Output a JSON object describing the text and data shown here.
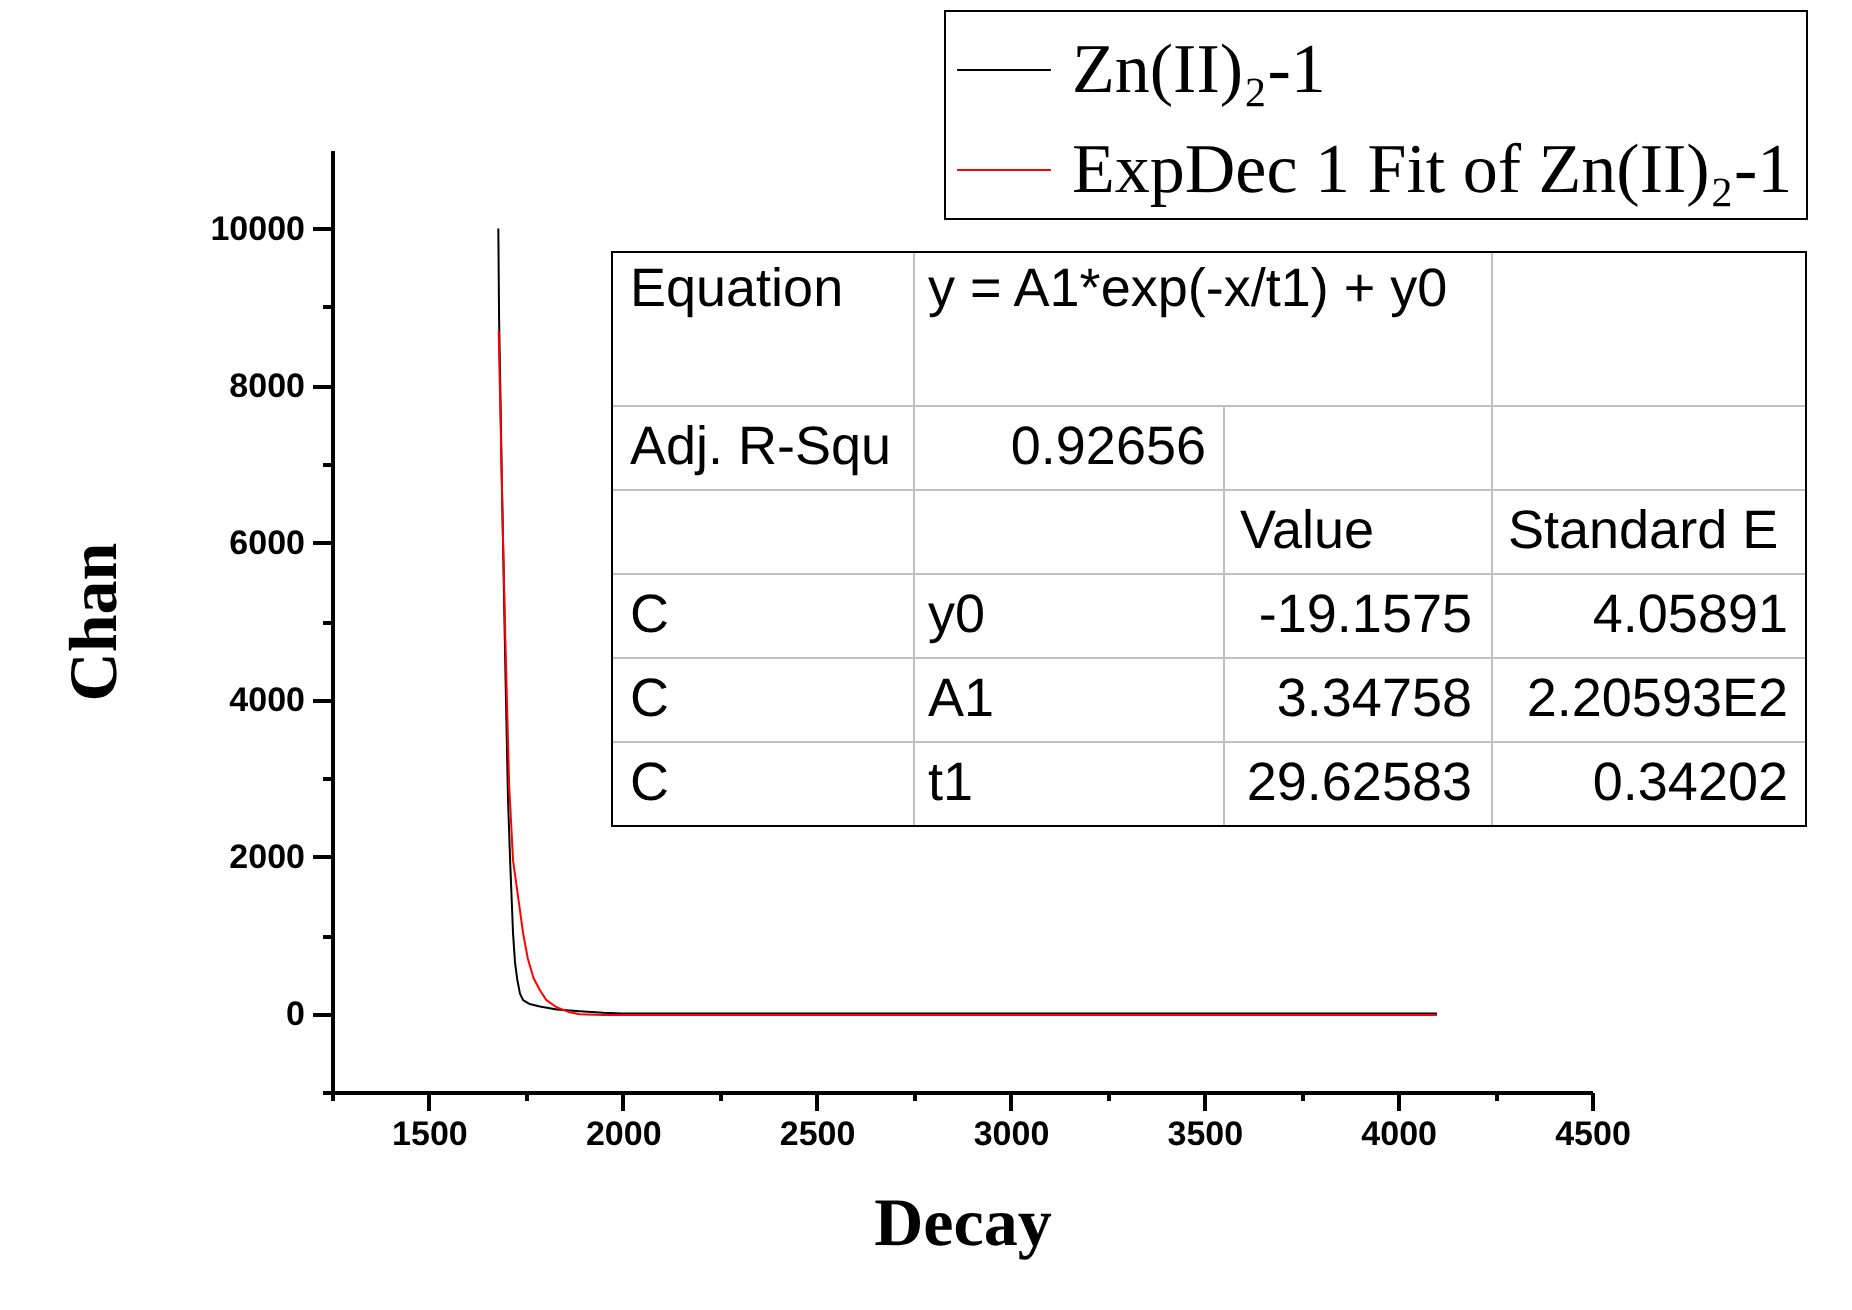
{
  "chart_data": {
    "type": "line",
    "xlabel": "Decay",
    "ylabel": "Chan",
    "xlim": [
      1250,
      4500
    ],
    "ylim": [
      -1000,
      11000
    ],
    "xticks": [
      {
        "value": 1250,
        "label": null
      },
      1500,
      {
        "value": 1750,
        "label": null
      },
      2000,
      {
        "value": 2250,
        "label": null
      },
      2500,
      {
        "value": 2750,
        "label": null
      },
      3000,
      {
        "value": 3250,
        "label": null
      },
      3500,
      {
        "value": 3750,
        "label": null
      },
      4000,
      {
        "value": 4250,
        "label": null
      },
      4500
    ],
    "yticks": [
      {
        "value": -1000,
        "label": null
      },
      0,
      {
        "value": 1000,
        "label": null
      },
      2000,
      {
        "value": 3000,
        "label": null
      },
      4000,
      {
        "value": 5000,
        "label": null
      },
      6000,
      {
        "value": 7000,
        "label": null
      },
      8000,
      {
        "value": 9000,
        "label": null
      },
      10000
    ],
    "grid": false,
    "legend": "top right",
    "line_style": "solid",
    "series": [
      {
        "name": "Zn(II)₂-1",
        "color": "#000000",
        "x": [
          1679,
          1681,
          1684,
          1688,
          1692,
          1697,
          1704,
          1710,
          1717,
          1722,
          1728,
          1735,
          1743,
          1760,
          1786,
          1830,
          1889,
          1950,
          2000,
          4100
        ],
        "values": [
          10000,
          8840,
          8000,
          6800,
          5780,
          4430,
          2720,
          1880,
          1020,
          650,
          430,
          250,
          170,
          120,
          90,
          50,
          30,
          10,
          0,
          0
        ]
      },
      {
        "name": "ExpDec 1 Fit of Zn(II)₂-1",
        "color": "#ff0000",
        "x": [
          1680,
          1685,
          1690,
          1697,
          1707,
          1717,
          1731,
          1743,
          1755,
          1770,
          1786,
          1803,
          1829,
          1860,
          1889,
          1950,
          4100
        ],
        "values": [
          8690,
          7500,
          6300,
          4800,
          2900,
          1950,
          1450,
          1020,
          700,
          450,
          300,
          170,
          80,
          20,
          -10,
          -20,
          -20
        ]
      }
    ],
    "annotations": [
      "Equation",
      "y = A1*exp(-x/t1) + y0",
      "Adj. R-Squ",
      "0.92656",
      "Value",
      "Standard E",
      "C",
      "y0",
      "-19.1575",
      "4.05891",
      "C",
      "A1",
      "3.34758",
      "2.20593E2",
      "C",
      "t1",
      "29.62583",
      "0.34202"
    ]
  }
}
